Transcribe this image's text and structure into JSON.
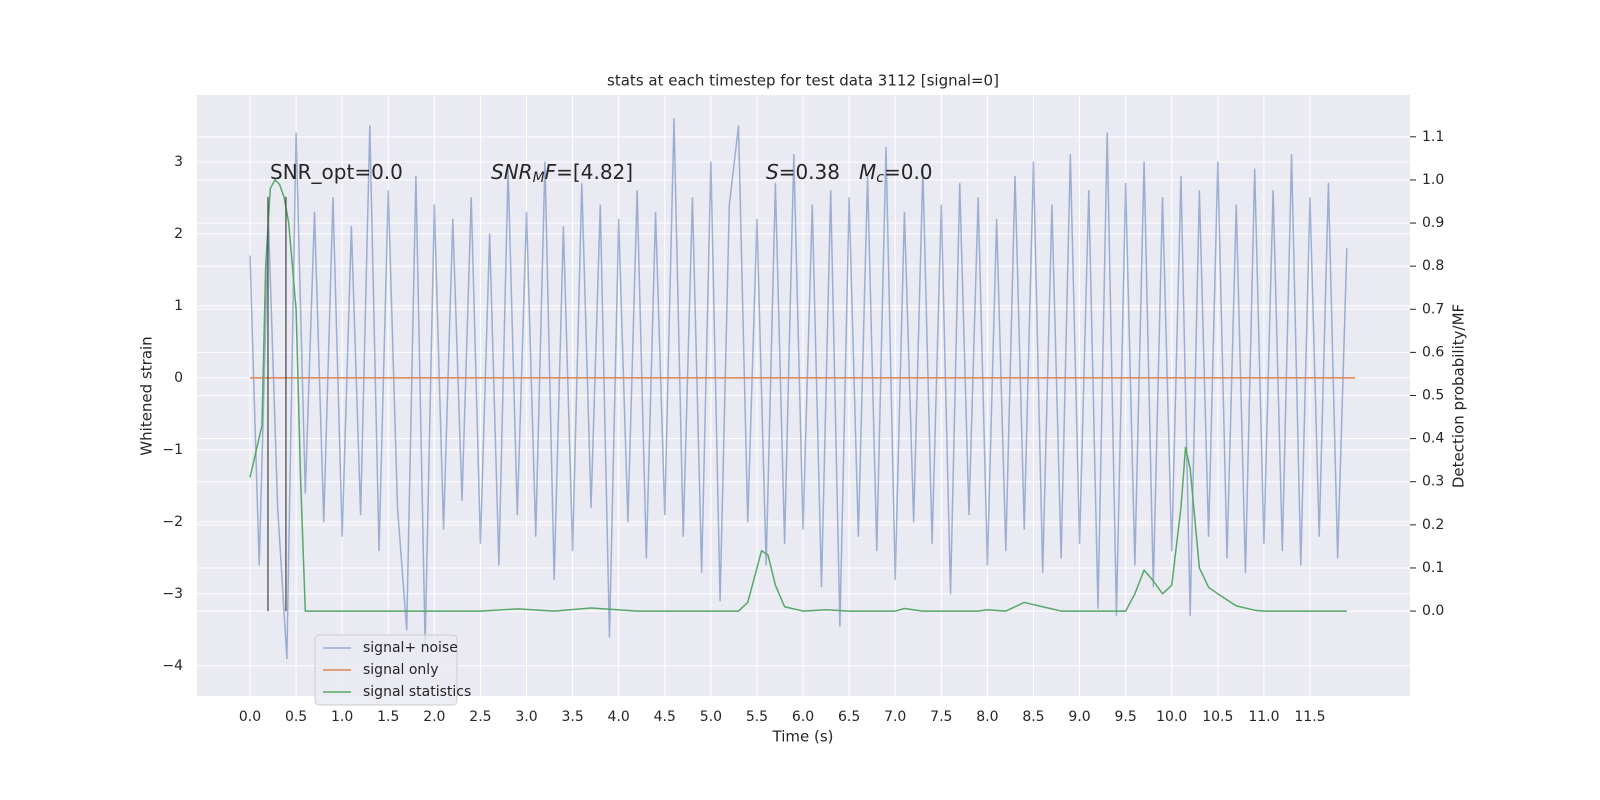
{
  "chart_data": {
    "type": "line",
    "title": "stats at each timestep for test data 3112 [signal=0]",
    "xlabel": "Time (s)",
    "ylabel": "Whitened strain",
    "y2label": "Detection probability/MF",
    "xlim": [
      -0.575,
      12.585
    ],
    "ylim": [
      -4.42,
      3.93
    ],
    "y2lim": [
      -0.197,
      1.197
    ],
    "xticks": [
      {
        "value": 0,
        "label": "0.0"
      },
      0.5,
      {
        "value": 1,
        "label": "1.0"
      },
      1.5,
      {
        "value": 2,
        "label": "2.0"
      },
      2.5,
      {
        "value": 3,
        "label": "3.0"
      },
      3.5,
      {
        "value": 4,
        "label": "4.0"
      },
      4.5,
      {
        "value": 5,
        "label": "5.0"
      },
      5.5,
      {
        "value": 6,
        "label": "6.0"
      },
      6.5,
      {
        "value": 7,
        "label": "7.0"
      },
      7.5,
      {
        "value": 8,
        "label": "8.0"
      },
      8.5,
      {
        "value": 9,
        "label": "9.0"
      },
      9.5,
      {
        "value": 10,
        "label": "10.0"
      },
      10.5,
      {
        "value": 11,
        "label": "11.0"
      },
      11.5
    ],
    "yticks": [
      {
        "value": -4,
        "label": "−4"
      },
      {
        "value": -3,
        "label": "−3"
      },
      {
        "value": -2,
        "label": "−2"
      },
      {
        "value": -1,
        "label": "−1"
      },
      0,
      1,
      2,
      3
    ],
    "y2ticks": [
      {
        "value": 0,
        "label": "0.0"
      },
      0.1,
      0.2,
      0.3,
      0.4,
      0.5,
      0.6,
      0.7,
      0.8,
      0.9,
      {
        "value": 1,
        "label": "1.0"
      },
      1.1
    ],
    "grid": true,
    "legend": "lower left",
    "series": [
      {
        "name": "signal+ noise",
        "color": "#4c72b0",
        "opacity": 0.5,
        "x": [
          0,
          0.1,
          0.2,
          0.3,
          0.4,
          0.5,
          0.6,
          0.7,
          0.8,
          0.9,
          1,
          1.1,
          1.2,
          1.3,
          1.4,
          1.5,
          1.6,
          1.7,
          1.8,
          1.9,
          2,
          2.1,
          2.2,
          2.3,
          2.4,
          2.5,
          2.6,
          2.7,
          2.8,
          2.9,
          3,
          3.1,
          3.2,
          3.3,
          3.4,
          3.5,
          3.6,
          3.7,
          3.8,
          3.9,
          4,
          4.1,
          4.2,
          4.3,
          4.4,
          4.5,
          4.6,
          4.7,
          4.8,
          4.9,
          5,
          5.1,
          5.2,
          5.3,
          5.4,
          5.5,
          5.6,
          5.7,
          5.8,
          5.9,
          6,
          6.1,
          6.2,
          6.3,
          6.4,
          6.5,
          6.6,
          6.7,
          6.8,
          6.9,
          7,
          7.1,
          7.2,
          7.3,
          7.4,
          7.5,
          7.6,
          7.7,
          7.8,
          7.9,
          8,
          8.1,
          8.2,
          8.3,
          8.4,
          8.5,
          8.6,
          8.7,
          8.8,
          8.9,
          9,
          9.1,
          9.2,
          9.3,
          9.4,
          9.5,
          9.6,
          9.7,
          9.8,
          9.9,
          10,
          10.1,
          10.2,
          10.3,
          10.4,
          10.5,
          10.6,
          10.7,
          10.8,
          10.9,
          11,
          11.1,
          11.2,
          11.3,
          11.4,
          11.5,
          11.6,
          11.7,
          11.8,
          11.9
        ],
        "values": [
          1.7,
          -2.6,
          2.2,
          -1.8,
          -3.9,
          3.4,
          -1.6,
          2.3,
          -2.0,
          2.5,
          -2.2,
          2.1,
          -1.9,
          3.5,
          -2.4,
          2.6,
          -1.8,
          -3.5,
          2.8,
          -3.7,
          2.4,
          -2.1,
          2.2,
          -1.7,
          2.5,
          -2.3,
          2.0,
          -2.6,
          2.9,
          -1.9,
          2.3,
          -2.2,
          3.0,
          -2.8,
          2.1,
          -2.4,
          2.7,
          -1.8,
          2.4,
          -3.6,
          2.2,
          -2.0,
          2.6,
          -2.5,
          2.3,
          -1.9,
          3.6,
          -2.2,
          2.5,
          -2.7,
          3.0,
          -3.1,
          2.4,
          3.5,
          -2.0,
          2.2,
          -2.6,
          2.7,
          -2.3,
          3.1,
          -2.1,
          2.4,
          -2.9,
          2.6,
          -3.45,
          2.5,
          -2.2,
          2.8,
          -2.4,
          3.2,
          -2.8,
          2.3,
          -2.0,
          2.9,
          -2.3,
          2.4,
          -3.0,
          2.7,
          -1.9,
          2.5,
          -2.6,
          2.2,
          -2.4,
          2.8,
          -2.1,
          3.0,
          -2.7,
          2.4,
          -2.5,
          3.1,
          -2.3,
          2.6,
          -3.2,
          3.4,
          -3.3,
          2.7,
          -2.6,
          3.0,
          -2.9,
          2.5,
          -2.4,
          2.8,
          -3.3,
          2.6,
          -2.2,
          3.0,
          -2.5,
          2.4,
          -2.7,
          2.9,
          -2.3,
          2.6,
          -2.4,
          3.1,
          -2.6,
          2.5,
          -2.2,
          2.7,
          -2.5,
          1.8
        ]
      },
      {
        "name": "signal only",
        "color": "#dd8452",
        "x": [
          0,
          11.99
        ],
        "values": [
          0,
          0
        ]
      },
      {
        "name": "signal statistics",
        "color": "#55a868",
        "axis": "y2",
        "x": [
          0,
          0.13,
          0.17,
          0.22,
          0.27,
          0.32,
          0.37,
          0.42,
          0.5,
          0.55,
          0.6,
          0.7,
          1,
          2,
          2.5,
          2.9,
          3.3,
          3.7,
          4.2,
          5.3,
          5.4,
          5.5,
          5.55,
          5.62,
          5.7,
          5.8,
          6,
          6.25,
          6.5,
          7,
          7.1,
          7.3,
          7.9,
          8,
          8.2,
          8.4,
          8.6,
          8.8,
          9.5,
          9.6,
          9.7,
          9.8,
          9.9,
          10,
          10.1,
          10.15,
          10.2,
          10.3,
          10.4,
          10.5,
          10.7,
          10.9,
          11,
          11.9
        ],
        "values": [
          0.31,
          0.43,
          0.8,
          0.98,
          1.0,
          0.99,
          0.96,
          0.9,
          0.7,
          0.3,
          0.0,
          0.0,
          0.0,
          0.0,
          0.0,
          0.005,
          0.0,
          0.007,
          0.0,
          0.0,
          0.02,
          0.1,
          0.14,
          0.13,
          0.06,
          0.01,
          0.0,
          0.003,
          0.0,
          0.0,
          0.006,
          0.0,
          0.0,
          0.003,
          0.0,
          0.02,
          0.01,
          0.0,
          0.0,
          0.04,
          0.095,
          0.07,
          0.04,
          0.06,
          0.24,
          0.38,
          0.33,
          0.1,
          0.055,
          0.04,
          0.012,
          0.002,
          0.0,
          0.0
        ]
      }
    ],
    "vlines": {
      "x": [
        0.195,
        0.39
      ],
      "color": "#444444"
    },
    "annotations": [
      {
        "runs": [
          {
            "text": "SNR_opt=0.0"
          }
        ]
      },
      {
        "runs": [
          {
            "text": "SNR",
            "italic": true
          },
          {
            "text": "M",
            "italic": true,
            "sub": true
          },
          {
            "text": "F",
            "italic": true
          },
          {
            "text": "=[4.82]"
          }
        ]
      },
      {
        "runs": [
          {
            "text": "S",
            "italic": true
          },
          {
            "text": "=0.38"
          }
        ]
      },
      {
        "runs": [
          {
            "text": "M",
            "italic": true
          },
          {
            "text": "c",
            "italic": true,
            "sub": true
          },
          {
            "text": "=0.0"
          }
        ]
      }
    ]
  }
}
